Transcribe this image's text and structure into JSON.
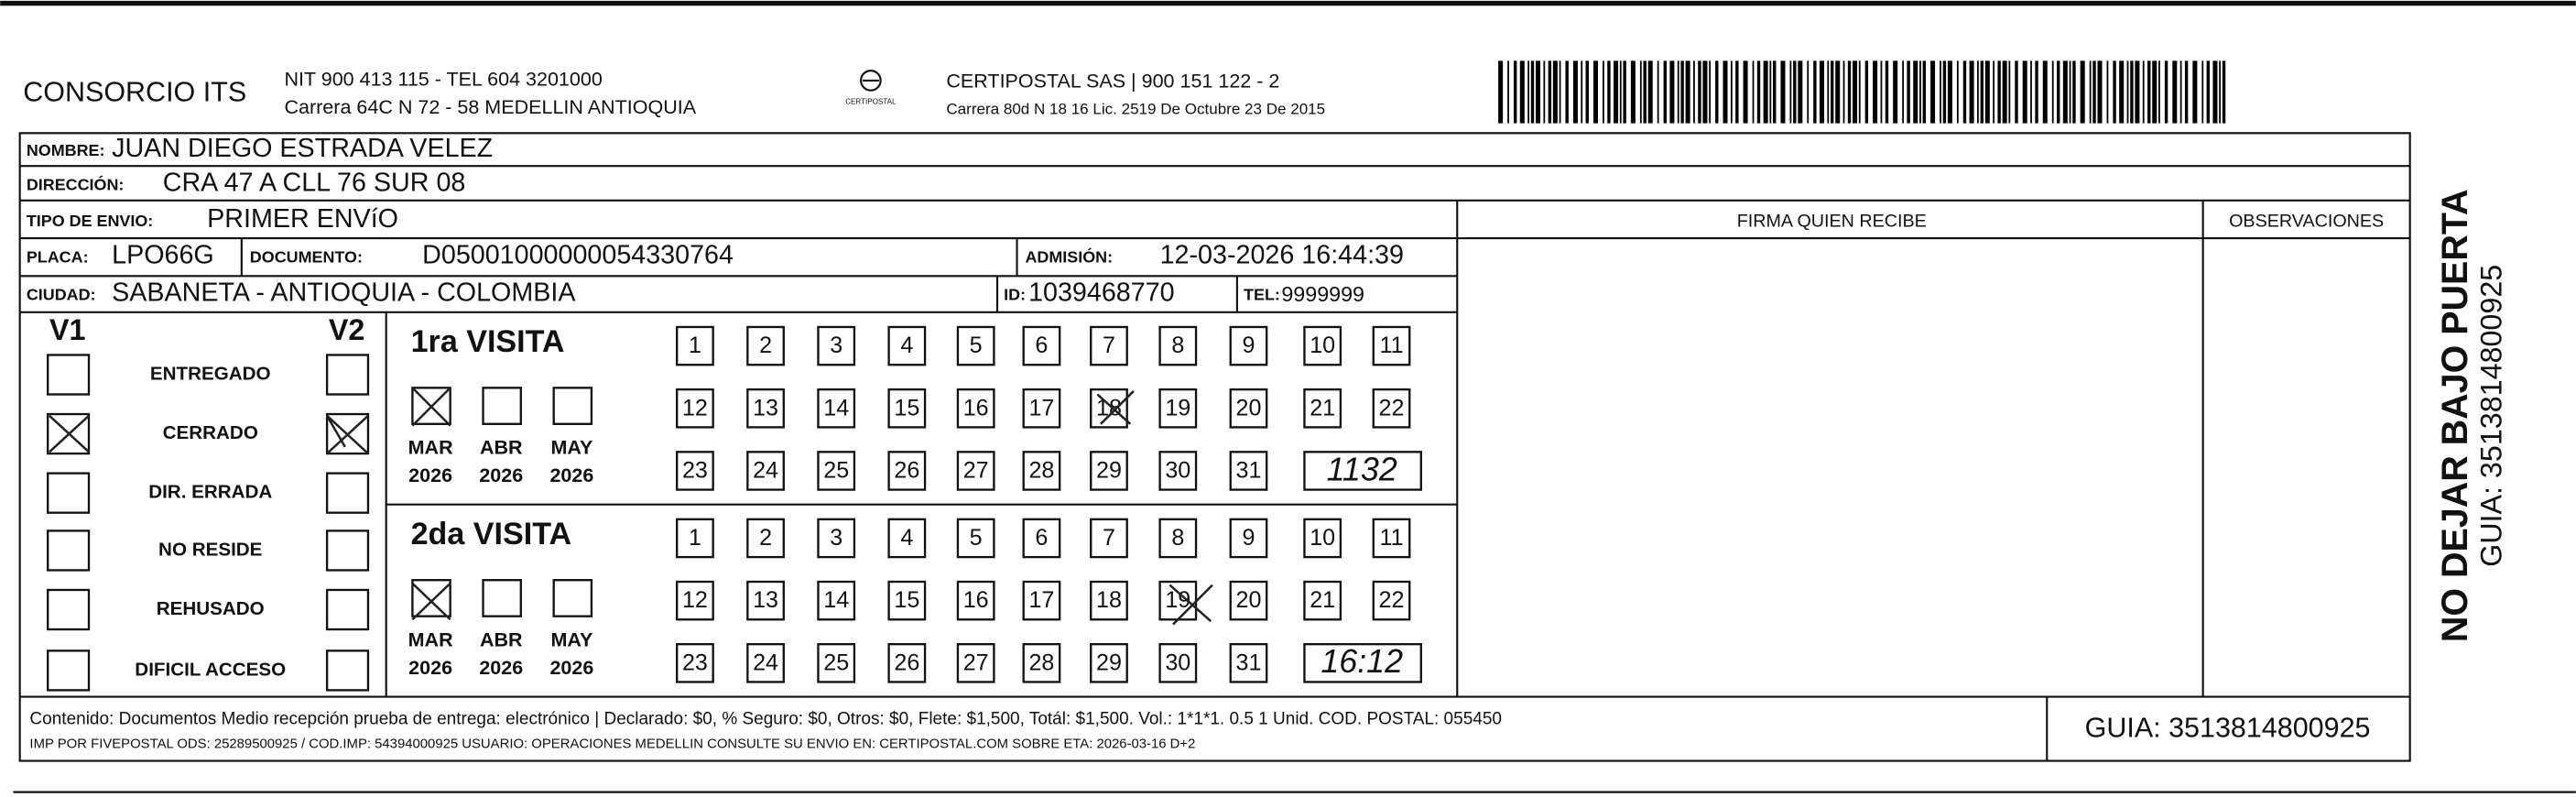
{
  "header": {
    "company": "CONSORCIO ITS",
    "nit": "NIT 900 413 115 - TEL 604 3201000",
    "address": "Carrera 64C N 72 - 58 MEDELLIN ANTIOQUIA",
    "logo": "CERTIPOSTAL",
    "carrier": "CERTIPOSTAL SAS | 900 151 122 - 2",
    "carrier_address": "Carrera 80d N 18 16 Lic. 2519 De Octubre 23 De 2015"
  },
  "fields": {
    "nombre_label": "NOMBRE:",
    "nombre": "JUAN DIEGO ESTRADA VELEZ",
    "direccion_label": "DIRECCIÓN:",
    "direccion": "CRA 47 A CLL 76 SUR 08",
    "tipo_label": "TIPO DE ENVIO:",
    "tipo": "PRIMER ENVíO",
    "placa_label": "PLACA:",
    "placa": "LPO66G",
    "documento_label": "DOCUMENTO:",
    "documento": "D05001000000054330764",
    "admision_label": "ADMISIÓN:",
    "admision": "12-03-2026 16:44:39",
    "ciudad_label": "CIUDAD:",
    "ciudad": "SABANETA - ANTIOQUIA - COLOMBIA",
    "id_label": "ID:",
    "id": "1039468770",
    "tel_label": "TEL:",
    "tel": "9999999"
  },
  "columns": {
    "firma": "FIRMA QUIEN RECIBE",
    "observaciones": "OBSERVACIONES"
  },
  "status": {
    "v1": "V1",
    "v2": "V2",
    "items": [
      "ENTREGADO",
      "CERRADO",
      "DIR. ERRADA",
      "NO RESIDE",
      "REHUSADO",
      "DIFICIL ACCESO"
    ]
  },
  "visits": [
    {
      "title": "1ra VISITA",
      "months": [
        {
          "month": "MAR",
          "year": "2026"
        },
        {
          "month": "ABR",
          "year": "2026"
        },
        {
          "month": "MAY",
          "year": "2026"
        }
      ],
      "days": [
        1,
        2,
        3,
        4,
        5,
        6,
        7,
        8,
        9,
        10,
        11,
        12,
        13,
        14,
        15,
        16,
        17,
        18,
        19,
        20,
        21,
        22,
        23,
        24,
        25,
        26,
        27,
        28,
        29,
        30,
        31
      ],
      "note": "1132"
    },
    {
      "title": "2da VISITA",
      "months": [
        {
          "month": "MAR",
          "year": "2026"
        },
        {
          "month": "ABR",
          "year": "2026"
        },
        {
          "month": "MAY",
          "year": "2026"
        }
      ],
      "days": [
        1,
        2,
        3,
        4,
        5,
        6,
        7,
        8,
        9,
        10,
        11,
        12,
        13,
        14,
        15,
        16,
        17,
        18,
        19,
        20,
        21,
        22,
        23,
        24,
        25,
        26,
        27,
        28,
        29,
        30,
        31
      ],
      "note": "16:12"
    }
  ],
  "footer": {
    "contenido": "Contenido: Documentos Medio recepción prueba de entrega: electrónico | Declarado: $0, % Seguro: $0, Otros: $0, Flete: $1,500, Totál: $1,500. Vol.: 1*1*1. 0.5  1 Unid. COD. POSTAL: 055450",
    "imp": "IMP POR FIVEPOSTAL ODS: 25289500925 / COD.IMP: 54394000925 USUARIO: OPERACIONES MEDELLIN CONSULTE SU ENVIO EN: CERTIPOSTAL.COM SOBRE ETA: 2026-03-16 D+2",
    "guia": "GUIA: 3513814800925"
  },
  "side": {
    "warning": "NO DEJAR BAJO PUERTA",
    "guia": "GUIA: 3513814800925"
  }
}
